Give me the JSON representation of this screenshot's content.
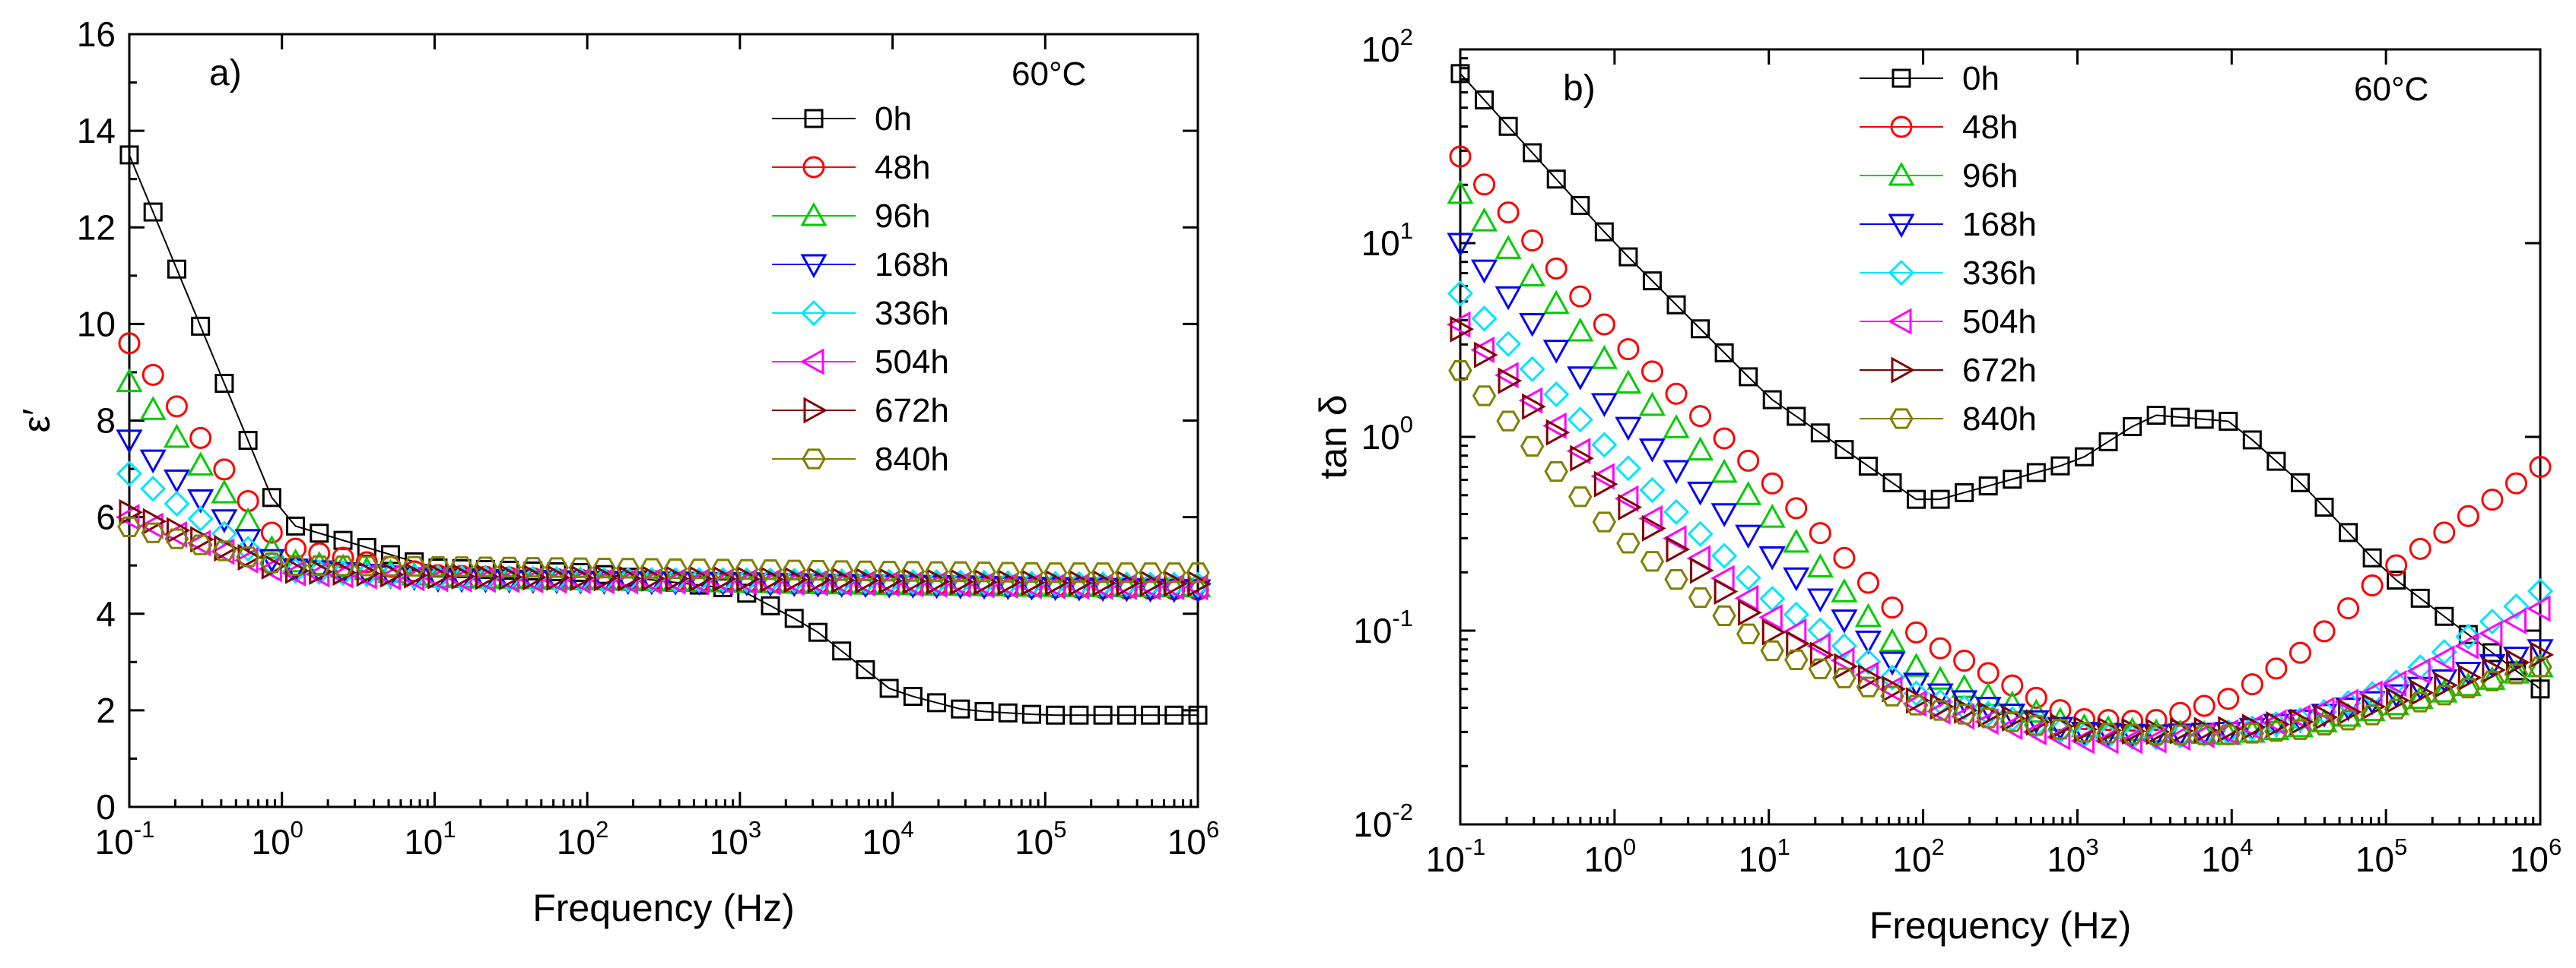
{
  "chart_data": [
    {
      "type": "scatter",
      "panel_label": "a)",
      "annotation": "60°C",
      "xlabel": "Frequency (Hz)",
      "ylabel": "ε′",
      "xscale": "log",
      "yscale": "linear",
      "xlim": [
        0.1,
        1000000
      ],
      "ylim": [
        0,
        16
      ],
      "xticks": [
        {
          "value": 0.1,
          "base": "10",
          "exp": "-1"
        },
        {
          "value": 1,
          "base": "10",
          "exp": "0"
        },
        {
          "value": 10,
          "base": "10",
          "exp": "1"
        },
        {
          "value": 100,
          "base": "10",
          "exp": "2"
        },
        {
          "value": 1000,
          "base": "10",
          "exp": "3"
        },
        {
          "value": 10000,
          "base": "10",
          "exp": "4"
        },
        {
          "value": 100000,
          "base": "10",
          "exp": "5"
        },
        {
          "value": 1000000,
          "base": "10",
          "exp": "6"
        }
      ],
      "yticks": [
        {
          "value": 0,
          "label": "0"
        },
        {
          "value": 2,
          "label": "2"
        },
        {
          "value": 4,
          "label": "4"
        },
        {
          "value": 6,
          "label": "6"
        },
        {
          "value": 8,
          "label": "8"
        },
        {
          "value": 10,
          "label": "10"
        },
        {
          "value": 12,
          "label": "12"
        },
        {
          "value": 14,
          "label": "14"
        },
        {
          "value": 16,
          "label": "16"
        }
      ],
      "legend_position": "top-right",
      "x": [
        0.1,
        1,
        10,
        100,
        1000,
        3000,
        10000,
        30000,
        100000,
        1000000
      ],
      "series": [
        {
          "name": "0h",
          "color": "#000000",
          "marker": "square",
          "connect": true,
          "values": [
            13.5,
            5.9,
            4.95,
            4.85,
            4.5,
            3.7,
            2.4,
            2.0,
            1.9,
            1.9
          ]
        },
        {
          "name": "48h",
          "color": "#ff0000",
          "marker": "circle",
          "connect": false,
          "values": [
            9.6,
            5.4,
            4.8,
            4.7,
            4.65,
            4.62,
            4.6,
            4.58,
            4.55,
            4.5
          ]
        },
        {
          "name": "96h",
          "color": "#00cc00",
          "marker": "triangle-up",
          "connect": false,
          "values": [
            8.8,
            5.1,
            4.75,
            4.7,
            4.65,
            4.62,
            4.6,
            4.58,
            4.56,
            4.55
          ]
        },
        {
          "name": "168h",
          "color": "#0000ff",
          "marker": "triangle-down",
          "connect": false,
          "values": [
            7.6,
            4.95,
            4.72,
            4.68,
            4.65,
            4.62,
            4.6,
            4.58,
            4.55,
            4.5
          ]
        },
        {
          "name": "336h",
          "color": "#00e5ff",
          "marker": "diamond",
          "connect": false,
          "values": [
            6.9,
            4.9,
            4.75,
            4.7,
            4.7,
            4.68,
            4.66,
            4.65,
            4.62,
            4.6
          ]
        },
        {
          "name": "504h",
          "color": "#ff00ff",
          "marker": "triangle-left",
          "connect": false,
          "values": [
            6.0,
            4.85,
            4.72,
            4.68,
            4.66,
            4.64,
            4.62,
            4.6,
            4.57,
            4.55
          ]
        },
        {
          "name": "672h",
          "color": "#800000",
          "marker": "triangle-right",
          "connect": false,
          "values": [
            6.1,
            4.9,
            4.78,
            4.74,
            4.72,
            4.7,
            4.68,
            4.66,
            4.64,
            4.62
          ]
        },
        {
          "name": "840h",
          "color": "#808000",
          "marker": "hexagon",
          "connect": false,
          "values": [
            5.8,
            5.0,
            4.98,
            4.95,
            4.92,
            4.9,
            4.88,
            4.87,
            4.85,
            4.85
          ]
        }
      ]
    },
    {
      "type": "scatter",
      "panel_label": "b)",
      "annotation": "60°C",
      "xlabel": "Frequency (Hz)",
      "ylabel": "tan δ",
      "xscale": "log",
      "yscale": "log",
      "xlim": [
        0.1,
        1000000
      ],
      "ylim": [
        0.01,
        100
      ],
      "xticks": [
        {
          "value": 0.1,
          "base": "10",
          "exp": "-1"
        },
        {
          "value": 1,
          "base": "10",
          "exp": "0"
        },
        {
          "value": 10,
          "base": "10",
          "exp": "1"
        },
        {
          "value": 100,
          "base": "10",
          "exp": "2"
        },
        {
          "value": 1000,
          "base": "10",
          "exp": "3"
        },
        {
          "value": 10000,
          "base": "10",
          "exp": "4"
        },
        {
          "value": 100000,
          "base": "10",
          "exp": "5"
        },
        {
          "value": 1000000,
          "base": "10",
          "exp": "6"
        }
      ],
      "yticks": [
        {
          "value": 0.01,
          "base": "10",
          "exp": "-2"
        },
        {
          "value": 0.1,
          "base": "10",
          "exp": "-1"
        },
        {
          "value": 1,
          "base": "10",
          "exp": "0"
        },
        {
          "value": 10,
          "base": "10",
          "exp": "1"
        },
        {
          "value": 100,
          "base": "10",
          "exp": "2"
        }
      ],
      "legend_position": "top-center",
      "x": [
        0.1,
        1,
        10,
        100,
        1000,
        3000,
        10000,
        30000,
        100000,
        1000000
      ],
      "series": [
        {
          "name": "0h",
          "color": "#000000",
          "marker": "square",
          "connect": true,
          "values": [
            75,
            10,
            1.6,
            0.45,
            0.75,
            1.3,
            1.2,
            0.55,
            0.2,
            0.05
          ]
        },
        {
          "name": "48h",
          "color": "#ff0000",
          "marker": "circle",
          "connect": false,
          "values": [
            28,
            3.3,
            0.6,
            0.09,
            0.035,
            0.034,
            0.045,
            0.08,
            0.2,
            0.7
          ]
        },
        {
          "name": "96h",
          "color": "#00cc00",
          "marker": "triangle-up",
          "connect": false,
          "values": [
            18,
            2.2,
            0.4,
            0.06,
            0.032,
            0.03,
            0.029,
            0.032,
            0.04,
            0.065
          ]
        },
        {
          "name": "168h",
          "color": "#0000ff",
          "marker": "triangle-down",
          "connect": false,
          "values": [
            10,
            1.3,
            0.25,
            0.05,
            0.03,
            0.029,
            0.03,
            0.035,
            0.045,
            0.08
          ]
        },
        {
          "name": "336h",
          "color": "#00e5ff",
          "marker": "diamond",
          "connect": false,
          "values": [
            5.5,
            0.8,
            0.15,
            0.045,
            0.029,
            0.028,
            0.03,
            0.035,
            0.05,
            0.16
          ]
        },
        {
          "name": "504h",
          "color": "#ff00ff",
          "marker": "triangle-left",
          "connect": false,
          "values": [
            3.8,
            0.55,
            0.12,
            0.04,
            0.027,
            0.027,
            0.03,
            0.036,
            0.05,
            0.13
          ]
        },
        {
          "name": "672h",
          "color": "#800000",
          "marker": "triangle-right",
          "connect": false,
          "values": [
            3.6,
            0.5,
            0.1,
            0.042,
            0.031,
            0.03,
            0.031,
            0.034,
            0.042,
            0.075
          ]
        },
        {
          "name": "840h",
          "color": "#808000",
          "marker": "hexagon",
          "connect": false,
          "values": [
            2.2,
            0.32,
            0.08,
            0.04,
            0.03,
            0.029,
            0.029,
            0.031,
            0.038,
            0.065
          ]
        }
      ]
    }
  ]
}
